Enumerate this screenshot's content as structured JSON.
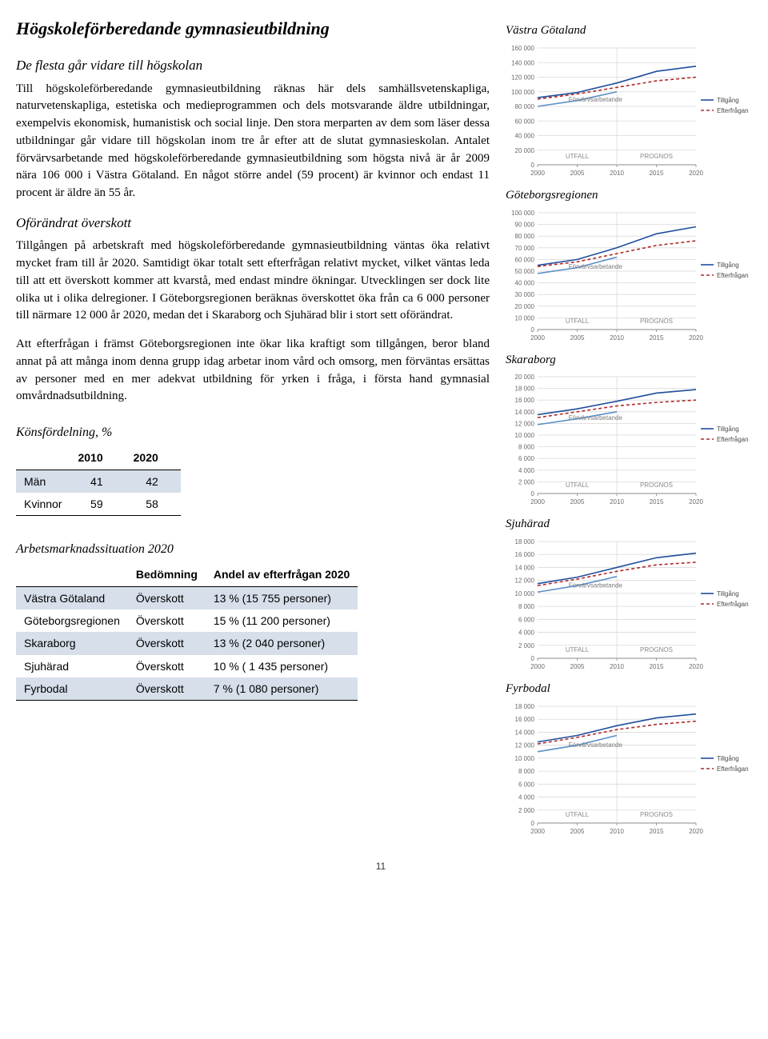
{
  "title": "Högskoleförberedande gymnasieutbildning",
  "subtitle1": "De flesta går vidare till högskolan",
  "para1": "Till högskoleförberedande gymnasieutbildning räknas här dels samhällsvetenskapliga, naturvetenskapliga, estetiska och medieprogrammen och dels motsvarande äldre utbildningar, exempelvis ekonomisk, humanistisk och social linje. Den stora merparten av dem som läser dessa utbildningar går vidare till högskolan inom tre år efter att de slutat gymnasieskolan. Antalet förvärvsarbetande med högskoleförberedande gymnasieutbildning som högsta nivå är år 2009 nära 106 000 i Västra Götaland. En något större andel (59 procent) är kvinnor och endast 11 procent är äldre än 55 år.",
  "subtitle2": "Oförändrat överskott",
  "para2": "Tillgången på arbetskraft med högskoleförberedande gymnasieutbildning väntas öka relativt mycket fram till år 2020. Samtidigt ökar totalt sett efterfrågan relativt mycket, vilket väntas leda till att ett överskott kommer att kvarstå, med endast mindre ökningar. Utvecklingen ser dock lite olika ut i olika delregioner. I Göteborgsregionen beräknas överskottet öka från ca 6 000 personer till närmare 12 000 år 2020, medan det i Skaraborg och Sjuhärad blir i stort sett oförändrat.",
  "para3": "Att efterfrågan i främst Göteborgsregionen inte ökar lika kraftigt som tillgången, beror bland annat på att många inom denna grupp idag arbetar inom vård och omsorg, men förväntas ersättas av personer med en mer adekvat utbildning för yrken i fråga, i första hand gymnasial omvårdnadsutbildning.",
  "gender_table": {
    "title": "Könsfördelning, %",
    "cols": [
      "",
      "2010",
      "2020"
    ],
    "rows": [
      {
        "label": "Män",
        "v2010": "41",
        "v2020": "42",
        "shade": true
      },
      {
        "label": "Kvinnor",
        "v2010": "59",
        "v2020": "58",
        "shade": false
      }
    ]
  },
  "situation_table": {
    "title": "Arbetsmarknadssituation 2020",
    "cols": [
      "",
      "Bedömning",
      "Andel av efterfrågan 2020"
    ],
    "rows": [
      {
        "region": "Västra Götaland",
        "bed": "Överskott",
        "andel": "13 % (15 755 personer)",
        "shade": true
      },
      {
        "region": "Göteborgsregionen",
        "bed": "Överskott",
        "andel": "15 % (11 200 personer)",
        "shade": false
      },
      {
        "region": "Skaraborg",
        "bed": "Överskott",
        "andel": "13 % (2 040 personer)",
        "shade": true
      },
      {
        "region": "Sjuhärad",
        "bed": "Överskott",
        "andel": "10 % ( 1 435 personer)",
        "shade": false
      },
      {
        "region": "Fyrbodal",
        "bed": "Överskott",
        "andel": " 7 % (1 080 personer)",
        "shade": true
      }
    ]
  },
  "charts": [
    {
      "title": "Västra Götaland",
      "ymax": 160000,
      "ystep": 20000,
      "tillgang": [
        92000,
        99000,
        112000,
        128000,
        135000
      ],
      "efterfragan": [
        90000,
        97000,
        106000,
        115000,
        120000
      ],
      "forvarv": [
        80000,
        88000,
        100000
      ]
    },
    {
      "title": "Göteborgsregionen",
      "ymax": 100000,
      "ystep": 10000,
      "tillgang": [
        55000,
        60000,
        70000,
        82000,
        88000
      ],
      "efterfragan": [
        54000,
        58000,
        65000,
        72000,
        76000
      ],
      "forvarv": [
        48000,
        53000,
        62000
      ]
    },
    {
      "title": "Skaraborg",
      "ymax": 20000,
      "ystep": 2000,
      "tillgang": [
        13500,
        14500,
        15800,
        17200,
        17800
      ],
      "efterfragan": [
        13000,
        14000,
        15000,
        15600,
        16000
      ],
      "forvarv": [
        11800,
        12800,
        14000
      ]
    },
    {
      "title": "Sjuhärad",
      "ymax": 18000,
      "ystep": 2000,
      "tillgang": [
        11500,
        12500,
        14000,
        15500,
        16200
      ],
      "efterfragan": [
        11200,
        12200,
        13400,
        14400,
        14800
      ],
      "forvarv": [
        10200,
        11200,
        12600
      ]
    },
    {
      "title": "Fyrbodal",
      "ymax": 18000,
      "ystep": 2000,
      "tillgang": [
        12500,
        13500,
        15000,
        16200,
        16800
      ],
      "efterfragan": [
        12200,
        13200,
        14400,
        15200,
        15700
      ],
      "forvarv": [
        11000,
        12000,
        13500
      ]
    }
  ],
  "chart_style": {
    "x_years": [
      2000,
      2005,
      2010,
      2015,
      2020
    ],
    "colors": {
      "tillgang": "#1f4e9c",
      "efterfragan": "#b02a2a",
      "forvarv": "#5a8fc7",
      "grid": "#d9d9d9",
      "axis": "#888888",
      "background": "#ffffff"
    },
    "legend": {
      "tillgang": "Tillgång",
      "efterfragan": "Efterfrågan"
    },
    "annotation": "Förvärvsarbetande",
    "mid_labels": {
      "left": "UTFALL",
      "right": "PROGNOS"
    },
    "line_width": 1.6,
    "dash": "4 3"
  },
  "page_number": "11"
}
